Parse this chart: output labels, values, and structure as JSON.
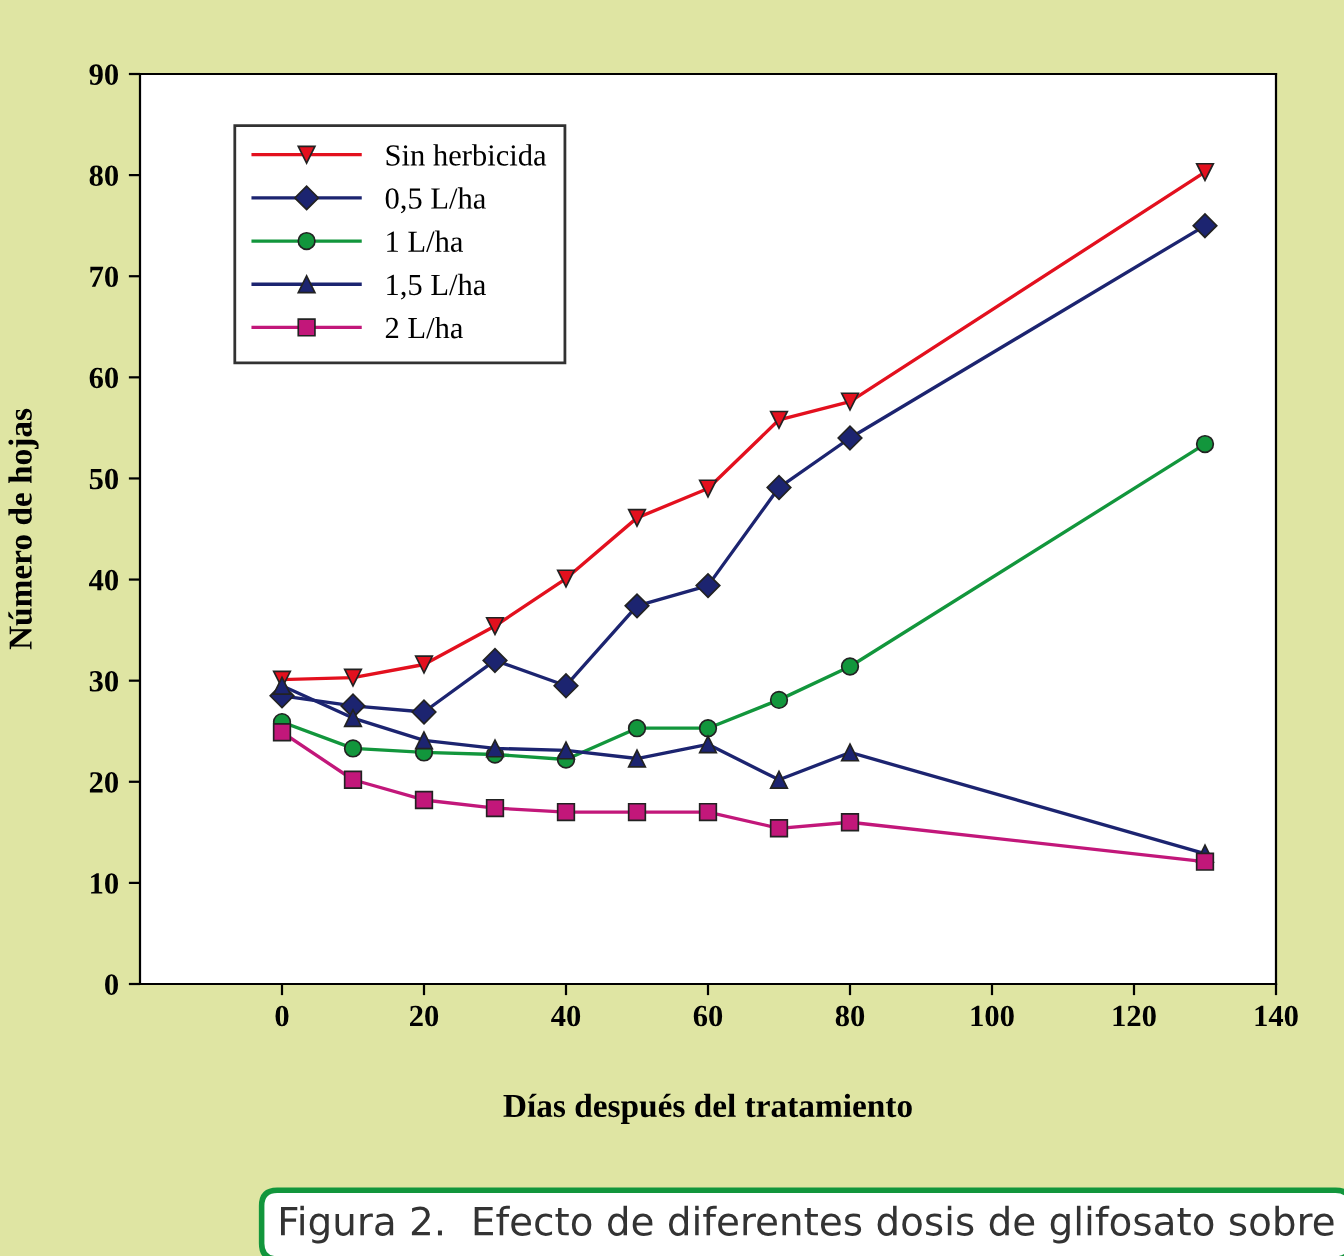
{
  "chart_data": {
    "type": "line",
    "xlabel": "Días después del tratamiento",
    "ylabel": "Número de hojas",
    "x": [
      0,
      10,
      20,
      30,
      40,
      50,
      60,
      70,
      80,
      130
    ],
    "series": [
      {
        "name": "Sin herbicida",
        "color": "#e3101e",
        "marker": "triangle",
        "values": [
          30.1,
          30.3,
          31.6,
          35.4,
          40.1,
          46.1,
          49.0,
          55.8,
          57.6,
          80.3
        ]
      },
      {
        "name": "0,5 L/ha",
        "color": "#1c2470",
        "marker": "diamond",
        "values": [
          28.5,
          27.5,
          26.9,
          32.0,
          29.5,
          37.4,
          39.4,
          49.1,
          54.0,
          75.0
        ]
      },
      {
        "name": "1 L/ha",
        "color": "#12963c",
        "marker": "circle",
        "values": [
          25.9,
          23.3,
          22.9,
          22.7,
          22.2,
          25.3,
          25.3,
          28.1,
          31.4,
          53.4
        ]
      },
      {
        "name": "1,5 L/ha",
        "color": "#1c2470",
        "marker": "triangle",
        "values": [
          29.5,
          26.3,
          24.1,
          23.3,
          23.1,
          22.3,
          23.7,
          20.2,
          22.9,
          12.9
        ]
      },
      {
        "name": "2 L/ha",
        "color": "#c2177a",
        "marker": "square",
        "values": [
          24.9,
          20.2,
          18.2,
          17.4,
          17.0,
          17.0,
          17.0,
          15.4,
          16.0,
          12.1
        ]
      }
    ],
    "xlim": [
      -20,
      140
    ],
    "xticks": [
      0,
      20,
      40,
      60,
      80,
      100,
      120,
      140
    ],
    "ylim": [
      0,
      90
    ],
    "yticks": [
      0,
      10,
      20,
      30,
      40,
      50,
      60,
      70,
      80,
      90
    ],
    "grid": false,
    "legend": "top left",
    "line_style": "solid",
    "annotations": [
      "Figura 2.  Efecto de diferentes dosis de glifosato sobre"
    ]
  }
}
